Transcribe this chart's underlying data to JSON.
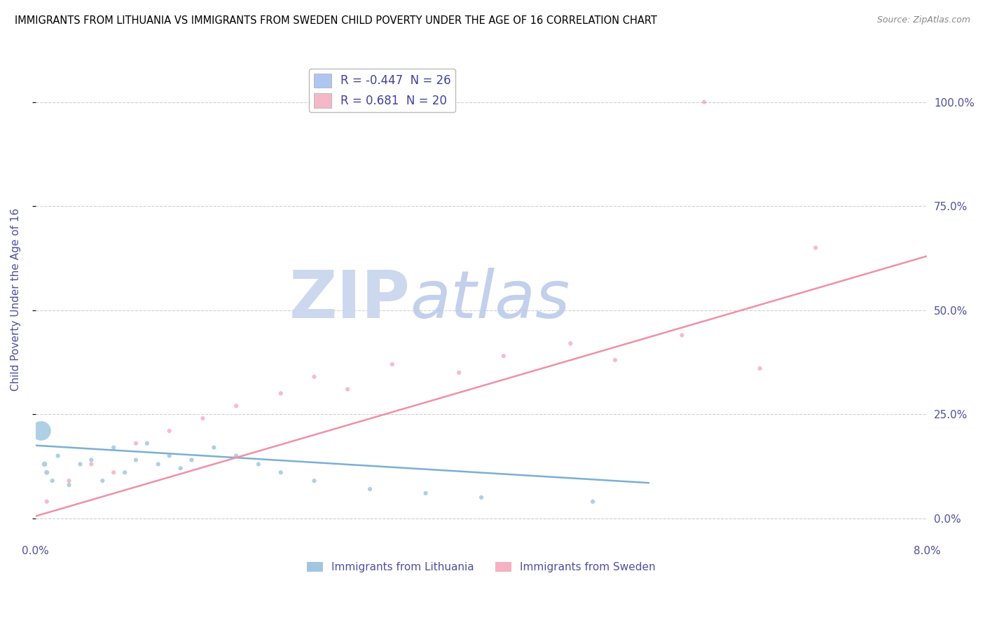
{
  "title": "IMMIGRANTS FROM LITHUANIA VS IMMIGRANTS FROM SWEDEN CHILD POVERTY UNDER THE AGE OF 16 CORRELATION CHART",
  "source": "Source: ZipAtlas.com",
  "ylabel": "Child Poverty Under the Age of 16",
  "legend_entries": [
    {
      "label": "Immigrants from Lithuania",
      "color": "#aec6f0",
      "R": -0.447,
      "N": 26
    },
    {
      "label": "Immigrants from Sweden",
      "color": "#f4b8c8",
      "R": 0.681,
      "N": 20
    }
  ],
  "yticks": [
    0.0,
    0.25,
    0.5,
    0.75,
    1.0
  ],
  "ytick_labels": [
    "0.0%",
    "25.0%",
    "50.0%",
    "75.0%",
    "100.0%"
  ],
  "xlim": [
    0.0,
    0.08
  ],
  "ylim": [
    -0.05,
    1.1
  ],
  "watermark_zip": "ZIP",
  "watermark_atlas": "atlas",
  "lithuania_scatter": {
    "x": [
      0.0008,
      0.001,
      0.0015,
      0.002,
      0.003,
      0.004,
      0.005,
      0.006,
      0.007,
      0.008,
      0.009,
      0.01,
      0.011,
      0.012,
      0.013,
      0.014,
      0.016,
      0.018,
      0.02,
      0.022,
      0.025,
      0.03,
      0.035,
      0.04,
      0.05,
      0.0005
    ],
    "y": [
      0.13,
      0.11,
      0.09,
      0.15,
      0.08,
      0.13,
      0.14,
      0.09,
      0.17,
      0.11,
      0.14,
      0.18,
      0.13,
      0.15,
      0.12,
      0.14,
      0.17,
      0.15,
      0.13,
      0.11,
      0.09,
      0.07,
      0.06,
      0.05,
      0.04,
      0.21
    ],
    "sizes": [
      30,
      25,
      20,
      20,
      20,
      20,
      20,
      20,
      20,
      20,
      20,
      20,
      20,
      20,
      20,
      20,
      20,
      20,
      20,
      20,
      20,
      20,
      20,
      20,
      20,
      400
    ]
  },
  "sweden_scatter": {
    "x": [
      0.001,
      0.003,
      0.005,
      0.007,
      0.009,
      0.012,
      0.015,
      0.018,
      0.022,
      0.025,
      0.028,
      0.032,
      0.038,
      0.042,
      0.048,
      0.052,
      0.058,
      0.065,
      0.07,
      0.06
    ],
    "y": [
      0.04,
      0.09,
      0.13,
      0.11,
      0.18,
      0.21,
      0.24,
      0.27,
      0.3,
      0.34,
      0.31,
      0.37,
      0.35,
      0.39,
      0.42,
      0.38,
      0.44,
      0.36,
      0.65,
      1.0
    ],
    "sizes": [
      20,
      20,
      20,
      20,
      20,
      20,
      20,
      20,
      20,
      20,
      20,
      20,
      20,
      20,
      20,
      20,
      20,
      20,
      20,
      20
    ]
  },
  "lithuania_line": {
    "x": [
      0.0,
      0.055
    ],
    "y": [
      0.175,
      0.085
    ]
  },
  "sweden_line": {
    "x": [
      0.0,
      0.08
    ],
    "y": [
      0.005,
      0.63
    ]
  },
  "lithuania_color": "#7bafd4",
  "sweden_color": "#f090a8",
  "title_fontsize": 10.5,
  "source_fontsize": 9,
  "tick_color": "#5050a0",
  "grid_color": "#d0d0d0",
  "legend_text_color": "#4040a0",
  "watermark_color": "#ccd8ee",
  "background_color": "#ffffff"
}
